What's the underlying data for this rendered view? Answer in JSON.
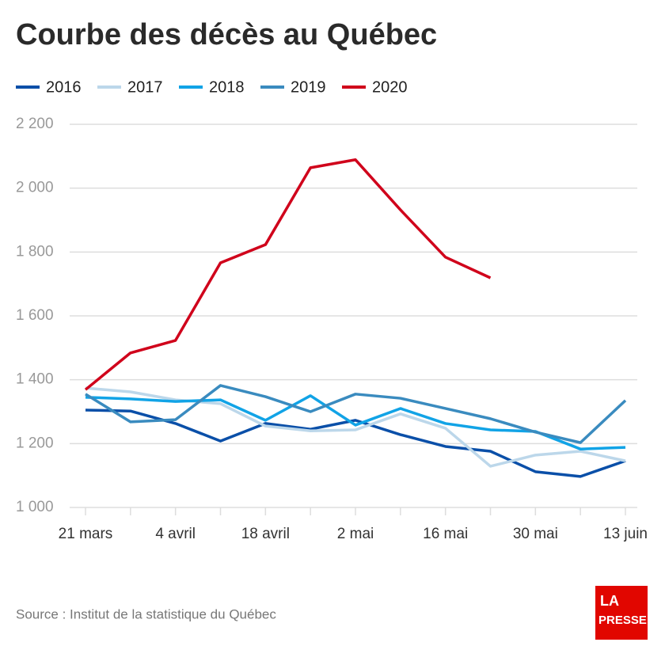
{
  "chart_data": {
    "type": "line",
    "title": "Courbe des décès au Québec",
    "source": "Source : Institut de la statistique du Québec",
    "logo": [
      "LA",
      "PRESSE"
    ],
    "categories": [
      "21 mars",
      null,
      "4 avril",
      null,
      "18 avril",
      null,
      "2 mai",
      null,
      "16 mai",
      null,
      "30 mai",
      null,
      "13 juin"
    ],
    "series": [
      {
        "name": "2016",
        "color": "#0a4fa8",
        "values": [
          1305,
          1302,
          1263,
          1208,
          1263,
          1245,
          1273,
          1228,
          1191,
          1176,
          1112,
          1097,
          1146
        ]
      },
      {
        "name": "2017",
        "color": "#bcd7ea",
        "values": [
          1374,
          1362,
          1337,
          1325,
          1255,
          1240,
          1243,
          1293,
          1248,
          1129,
          1164,
          1176,
          1146
        ]
      },
      {
        "name": "2018",
        "color": "#11a3e6",
        "values": [
          1345,
          1340,
          1332,
          1337,
          1273,
          1350,
          1258,
          1310,
          1263,
          1243,
          1238,
          1183,
          1188
        ]
      },
      {
        "name": "2019",
        "color": "#3a8bbf",
        "values": [
          1355,
          1268,
          1275,
          1382,
          1347,
          1300,
          1355,
          1342,
          1310,
          1278,
          1236,
          1203,
          1335
        ]
      },
      {
        "name": "2020",
        "color": "#d0021b",
        "values": [
          1369,
          1484,
          1523,
          1766,
          1823,
          2064,
          2089,
          1932,
          1784,
          1719,
          null,
          null,
          null
        ]
      }
    ],
    "ylim": [
      1000,
      2200
    ],
    "yticks": [
      {
        "value": 1000,
        "label": "1 000"
      },
      {
        "value": 1200,
        "label": "1 200"
      },
      {
        "value": 1400,
        "label": "1 400"
      },
      {
        "value": 1600,
        "label": "1 600"
      },
      {
        "value": 1800,
        "label": "1 800"
      },
      {
        "value": 2000,
        "label": "2 000"
      },
      {
        "value": 2200,
        "label": "2 200"
      }
    ],
    "grid": true
  }
}
